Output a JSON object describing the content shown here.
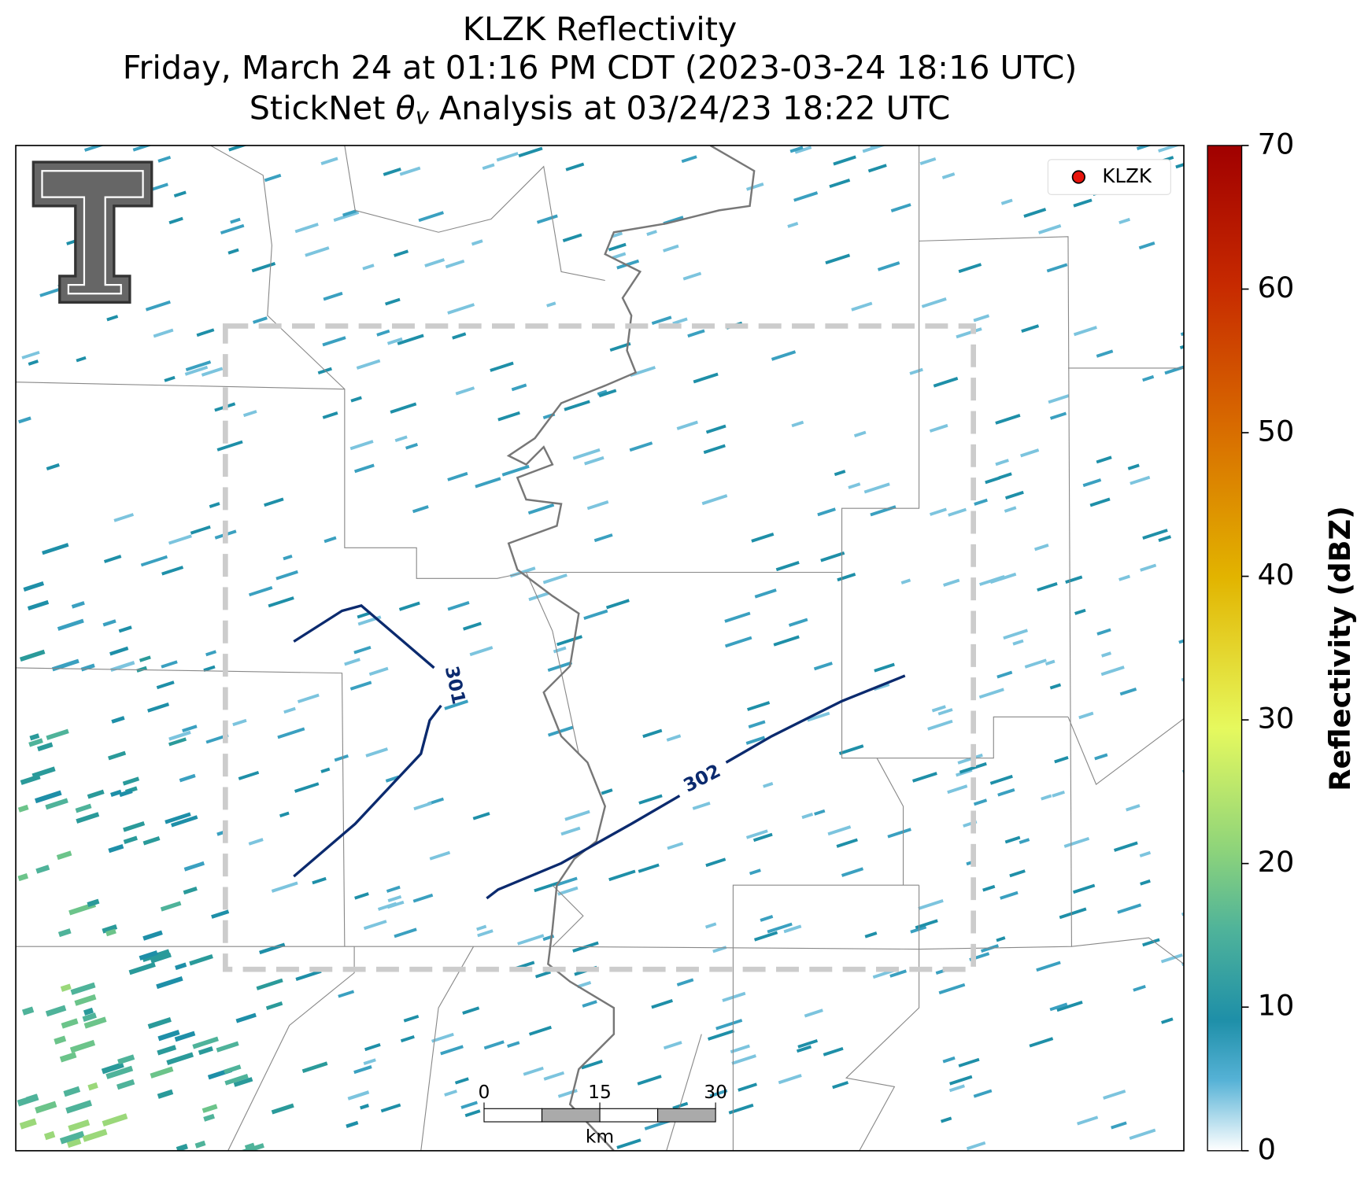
{
  "title": {
    "line1": "KLZK Reflectivity",
    "line2": "Friday, March 24 at 01:16 PM CDT (2023-03-24 18:16 UTC)",
    "line3": {
      "before": "StickNet ",
      "symbol": "θ",
      "subscript": "v",
      "after": " Analysis at 03/24/23 18:22 UTC"
    }
  },
  "legend": [
    "KLZK"
  ],
  "contours": [
    {
      "label": "301"
    },
    {
      "label": "302"
    }
  ],
  "scalebar": {
    "ticks": [
      0,
      15,
      30
    ],
    "unit": "km"
  },
  "colorbar": {
    "label": "Reflectivity (dBZ)",
    "lim": [
      0,
      70
    ],
    "ticks": [
      0,
      10,
      20,
      30,
      40,
      50,
      60,
      70
    ]
  }
}
